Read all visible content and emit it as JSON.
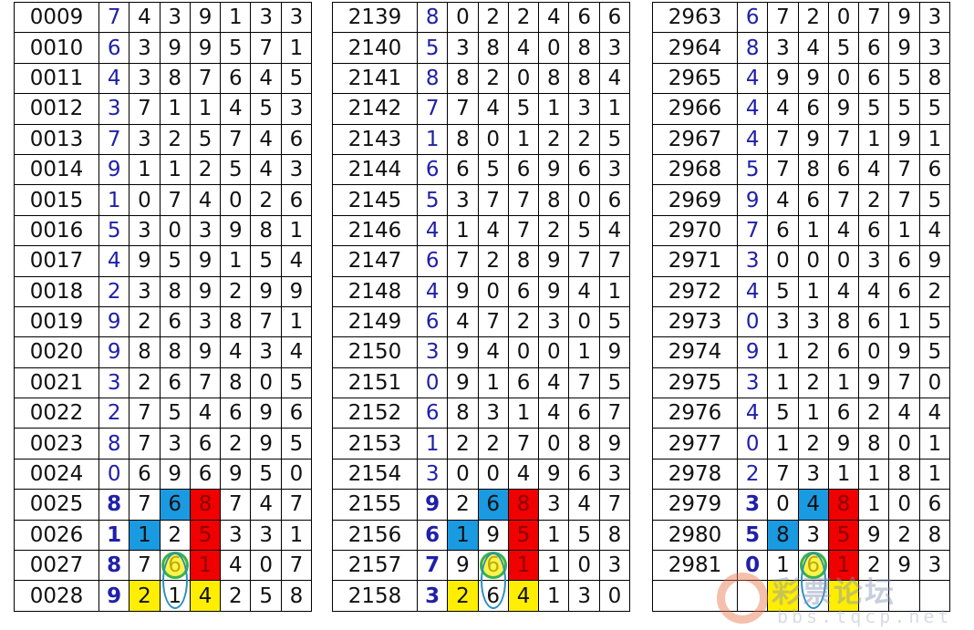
{
  "colors": {
    "first_digit": "#2020a8",
    "blue": "#1a9ae0",
    "red": "#f00000",
    "yellow": "#ffee00",
    "circle": "#37b34a",
    "ellipse": "#2a8fc0"
  },
  "tables": [
    {
      "rows": [
        [
          "0009",
          "7439133"
        ],
        [
          "0010",
          "6399571"
        ],
        [
          "0011",
          "4387645"
        ],
        [
          "0012",
          "3711453"
        ],
        [
          "0013",
          "7325746"
        ],
        [
          "0014",
          "9112543"
        ],
        [
          "0015",
          "1074026"
        ],
        [
          "0016",
          "5303981"
        ],
        [
          "0017",
          "4959154"
        ],
        [
          "0018",
          "2389299"
        ],
        [
          "0019",
          "9263871"
        ],
        [
          "0020",
          "9889434"
        ],
        [
          "0021",
          "3267805"
        ],
        [
          "0022",
          "2754696"
        ],
        [
          "0023",
          "8736295"
        ],
        [
          "0024",
          "0696950"
        ],
        [
          "0025",
          "8768747"
        ],
        [
          "0026",
          "1125331"
        ],
        [
          "0027",
          "8761407"
        ],
        [
          "0028",
          "9214258"
        ]
      ]
    },
    {
      "rows": [
        [
          "2139",
          "8022466"
        ],
        [
          "2140",
          "5384083"
        ],
        [
          "2141",
          "8820884"
        ],
        [
          "2142",
          "7745131"
        ],
        [
          "2143",
          "1801225"
        ],
        [
          "2144",
          "6656963"
        ],
        [
          "2145",
          "5377806"
        ],
        [
          "2146",
          "4147254"
        ],
        [
          "2147",
          "6728977"
        ],
        [
          "2148",
          "4906941"
        ],
        [
          "2149",
          "6472305"
        ],
        [
          "2150",
          "3940019"
        ],
        [
          "2151",
          "0916475"
        ],
        [
          "2152",
          "6831467"
        ],
        [
          "2153",
          "1227089"
        ],
        [
          "2154",
          "3004963"
        ],
        [
          "2155",
          "9268347"
        ],
        [
          "2156",
          "6195158"
        ],
        [
          "2157",
          "7961103"
        ],
        [
          "2158",
          "3264130"
        ]
      ]
    },
    {
      "rows": [
        [
          "2963",
          "6720793"
        ],
        [
          "2964",
          "8345693"
        ],
        [
          "2965",
          "4990658"
        ],
        [
          "2966",
          "4469555"
        ],
        [
          "2967",
          "4797191"
        ],
        [
          "2968",
          "5786476"
        ],
        [
          "2969",
          "9467275"
        ],
        [
          "2970",
          "7614614"
        ],
        [
          "2971",
          "3000369"
        ],
        [
          "2972",
          "4514462"
        ],
        [
          "2973",
          "0338615"
        ],
        [
          "2974",
          "9126095"
        ],
        [
          "2975",
          "3121970"
        ],
        [
          "2976",
          "4516244"
        ],
        [
          "2977",
          "0129801"
        ],
        [
          "2978",
          "2731181"
        ],
        [
          "2979",
          "3048106"
        ],
        [
          "2980",
          "5835928"
        ],
        [
          "2981",
          "0161293"
        ],
        [
          "",
          ""
        ]
      ]
    }
  ],
  "highlights": [
    {
      "row": 16,
      "col": 2,
      "color": "blue"
    },
    {
      "row": 16,
      "col": 3,
      "color": "red"
    },
    {
      "row": 17,
      "col": 1,
      "color": "blue"
    },
    {
      "row": 17,
      "col": 3,
      "color": "red"
    },
    {
      "row": 18,
      "col": 3,
      "color": "red"
    },
    {
      "row": 19,
      "col": 1,
      "color": "yellow"
    },
    {
      "row": 19,
      "col": 3,
      "color": "yellow"
    }
  ],
  "circled": {
    "row": 18,
    "col": 2
  },
  "ellipse": {
    "rows": [
      18,
      19
    ],
    "col": 2
  },
  "bold_rows": [
    16,
    17,
    18
  ],
  "watermark": {
    "text": "彩票论坛",
    "url": "bbs.tqcp.net"
  }
}
